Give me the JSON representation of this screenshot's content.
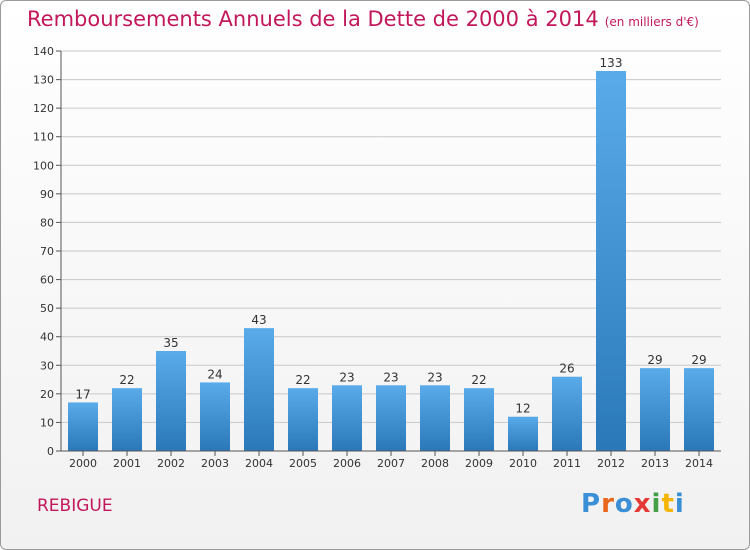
{
  "title": "Remboursements Annuels de la Dette de 2000 à 2014",
  "unit": "(en milliers d'€)",
  "place": "REBIGUE",
  "logo": "Proxiti",
  "colors": {
    "title": "#c2185b",
    "bar_top": "#5aabea",
    "bar_bottom": "#2a78b8",
    "grid": "#c8c8c8"
  },
  "chart_data": {
    "type": "bar",
    "categories": [
      "2000",
      "2001",
      "2002",
      "2003",
      "2004",
      "2005",
      "2006",
      "2007",
      "2008",
      "2009",
      "2010",
      "2011",
      "2012",
      "2013",
      "2014"
    ],
    "values": [
      17,
      22,
      35,
      24,
      43,
      22,
      23,
      23,
      23,
      22,
      12,
      26,
      133,
      29,
      29
    ],
    "ylim": [
      0,
      140
    ],
    "yticks": [
      0,
      10,
      20,
      30,
      40,
      50,
      60,
      70,
      80,
      90,
      100,
      110,
      120,
      130,
      140
    ],
    "grid": true,
    "data_labels": true
  }
}
